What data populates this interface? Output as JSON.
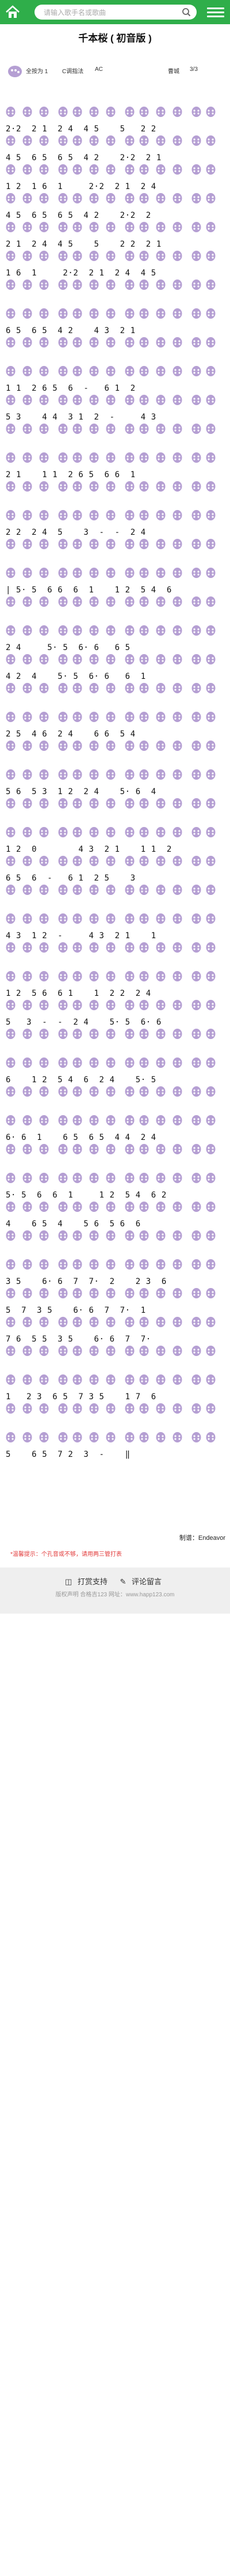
{
  "search": {
    "placeholder": "请输入歌手名或歌曲"
  },
  "page_title": "千本桜 ( 初音版 )",
  "info": {
    "pitch": "全按为 1",
    "key": "C调指法",
    "tuning": "AC",
    "author_label": "曹城",
    "tempo": "3/3"
  },
  "score_lines": [
    "2·2  2 1  2 4  4 5    5   2 2",
    "4 5  6 5  6 5  4 2    2·2  2 1",
    "1 2  1 6  1     2·2  2 1  2 4",
    "4 5  6 5  6 5  4 2    2·2  2",
    "2 1  2 4  4 5    5    2 2  2 1",
    "1 6  1     2·2  2 1  2 4  4 5",
    "",
    "6 5  6 5  4 2    4 3  2 1",
    "",
    "1 1  2 6 5  6  -   6 1  2",
    "5 3    4 4  3 1  2  -     4 3",
    "",
    "2 1    1 1  2 6 5  6 6  1",
    "",
    "2 2  2 4  5    3  -  -  2 4",
    "",
    "| 5· 5  6 6  6  1    1 2  5 4  6",
    "",
    "2 4     5· 5  6· 6   6 5",
    "4 2  4    5· 5  6· 6   6  1",
    "",
    "2 5  4 6  2 4    6 6  5 4",
    "",
    "5 6  5 3  1 2  2 4    5· 6  4",
    "",
    "1 2  0        4 3  2 1    1 1  2",
    "6 5  6  -   6 1  2 5    3",
    "",
    "4 3  1 2  -     4 3  2 1    1",
    "",
    "1 2  5 6  6 1    1  2 2  2 4",
    "5   3  -  -  2 4    5· 5  6· 6",
    "",
    "6    1 2  5 4  6  2 4    5· 5",
    "",
    "6· 6  1    6 5  6 5  4 4  2 4",
    "",
    "5· 5  6  6  1     1 2  5 4  6 2",
    "4    6 5  4    5 6  5 6  6",
    "",
    "3 5    6· 6  7  7·  2    2 3  6",
    "5  7  3 5    6· 6  7  7·  1",
    "7 6  5 5  3 5    6· 6  7  7·",
    "",
    "1   2 3  6 5  7 3 5    1 7  6",
    "",
    "5    6 5  7 2  3  -    ‖"
  ],
  "arranger": "制谱：Endeavor",
  "tip": "*温馨提示：个孔音或不够，请用两三管打表",
  "footer": {
    "donate": "打赏支持",
    "comment": "评论留言",
    "copyright": "版权声明  合格吉123 网址：www.happ123.com"
  },
  "colors": {
    "topbar": "#2fae4a",
    "hole": "#b59fd3",
    "tip": "#e23b3b"
  }
}
